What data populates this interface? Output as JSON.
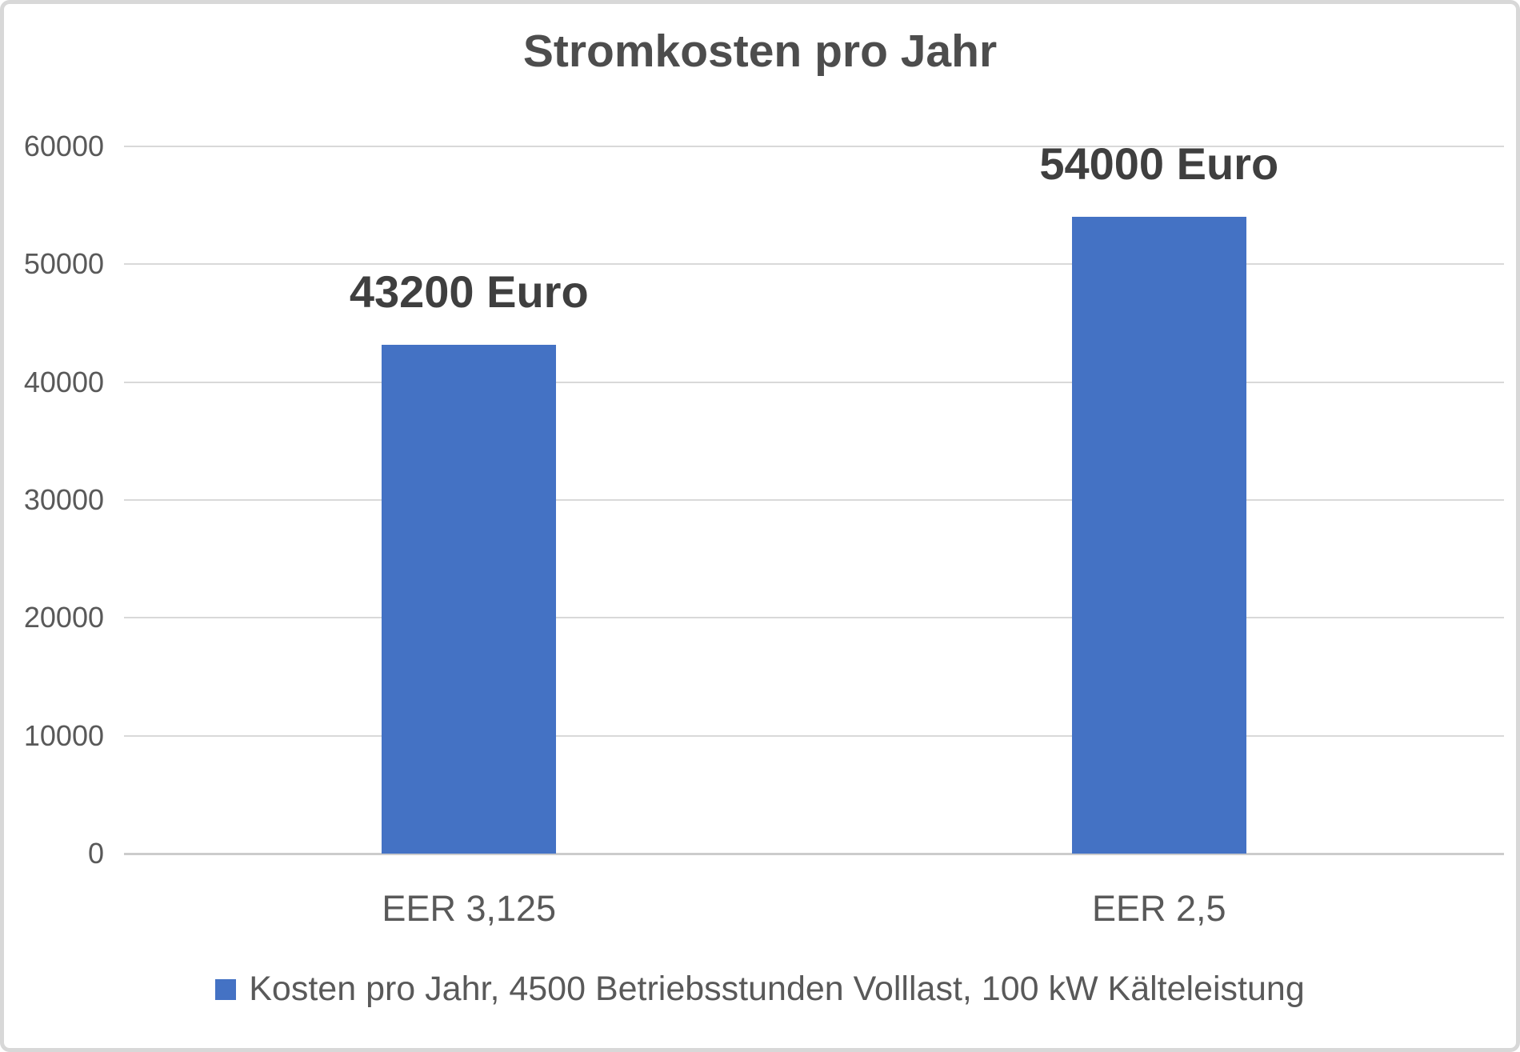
{
  "chart_data": {
    "type": "bar",
    "title": "Stromkosten pro Jahr",
    "categories": [
      "EER 3,125",
      "EER 2,5"
    ],
    "series": [
      {
        "name": "Kosten pro Jahr, 4500 Betriebsstunden Volllast, 100 kW Kälteleistung",
        "values": [
          43200,
          54000
        ],
        "data_labels": [
          "43200 Euro",
          "54000 Euro"
        ],
        "color": "#4472C4"
      }
    ],
    "xlabel": "",
    "ylabel": "",
    "ylim": [
      0,
      60000
    ],
    "ytick_step": 10000,
    "ytick_labels": [
      "0",
      "10000",
      "20000",
      "30000",
      "40000",
      "50000",
      "60000"
    ],
    "grid": true,
    "legend_position": "bottom",
    "colors": {
      "bar": "#4472C4",
      "grid": "#D9D9D9",
      "axis_line": "#CCCCCC",
      "axis_text": "#595959",
      "data_label_text": "#3F3F3F",
      "title_text": "#4D4D4D",
      "background": "#FFFFFF",
      "frame_border": "#D8D8D8"
    }
  }
}
